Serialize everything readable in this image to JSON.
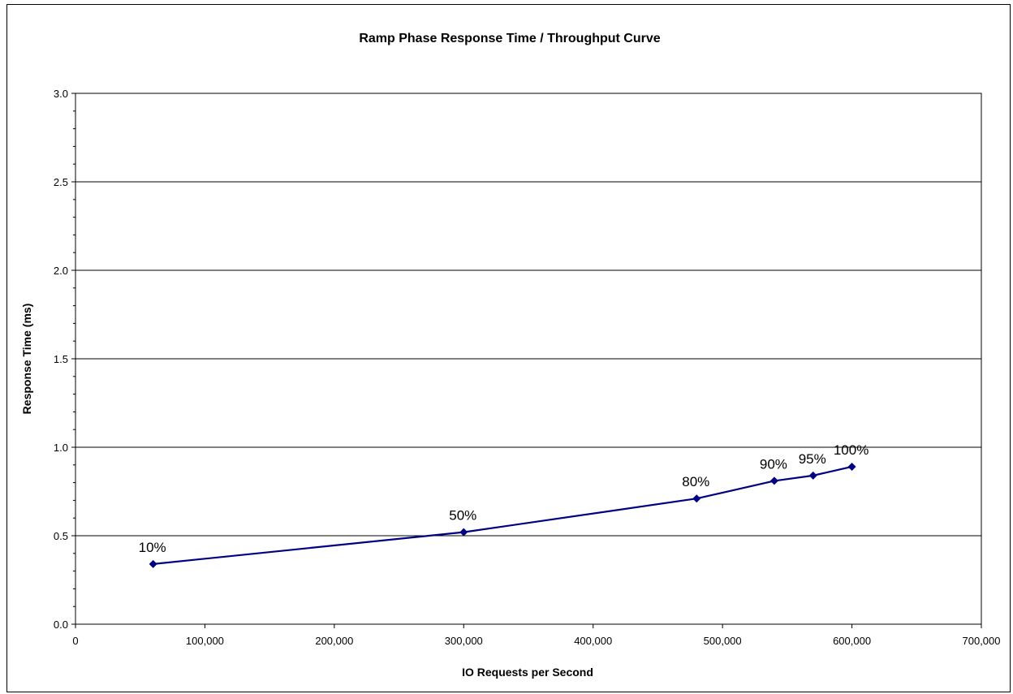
{
  "chart_data": {
    "type": "line",
    "title": "Ramp Phase Response Time  /  Throughput Curve",
    "xlabel": "IO Requests  per Second",
    "ylabel": "Response Time (ms)",
    "xlim": [
      0,
      700000
    ],
    "ylim": [
      0,
      3.0
    ],
    "x_ticks": [
      0,
      100000,
      200000,
      300000,
      400000,
      500000,
      600000,
      700000
    ],
    "x_tick_labels": [
      "0",
      "100,000",
      "200,000",
      "300,000",
      "400,000",
      "500,000",
      "600,000",
      "700,000"
    ],
    "y_ticks": [
      0,
      0.5,
      1.0,
      1.5,
      2.0,
      2.5,
      3.0
    ],
    "y_tick_labels": [
      "0.0",
      "0.5",
      "1.0",
      "1.5",
      "2.0",
      "2.5",
      "3.0"
    ],
    "grid": "horizontal",
    "legend": "none",
    "series": [
      {
        "color": "#000080",
        "marker": "diamond",
        "points": [
          {
            "x": 60000,
            "y": 0.34,
            "label": "10%"
          },
          {
            "x": 300000,
            "y": 0.52,
            "label": "50%"
          },
          {
            "x": 480000,
            "y": 0.71,
            "label": "80%"
          },
          {
            "x": 540000,
            "y": 0.81,
            "label": "90%"
          },
          {
            "x": 570000,
            "y": 0.84,
            "label": "95%"
          },
          {
            "x": 600000,
            "y": 0.89,
            "label": "100%"
          }
        ]
      }
    ]
  }
}
